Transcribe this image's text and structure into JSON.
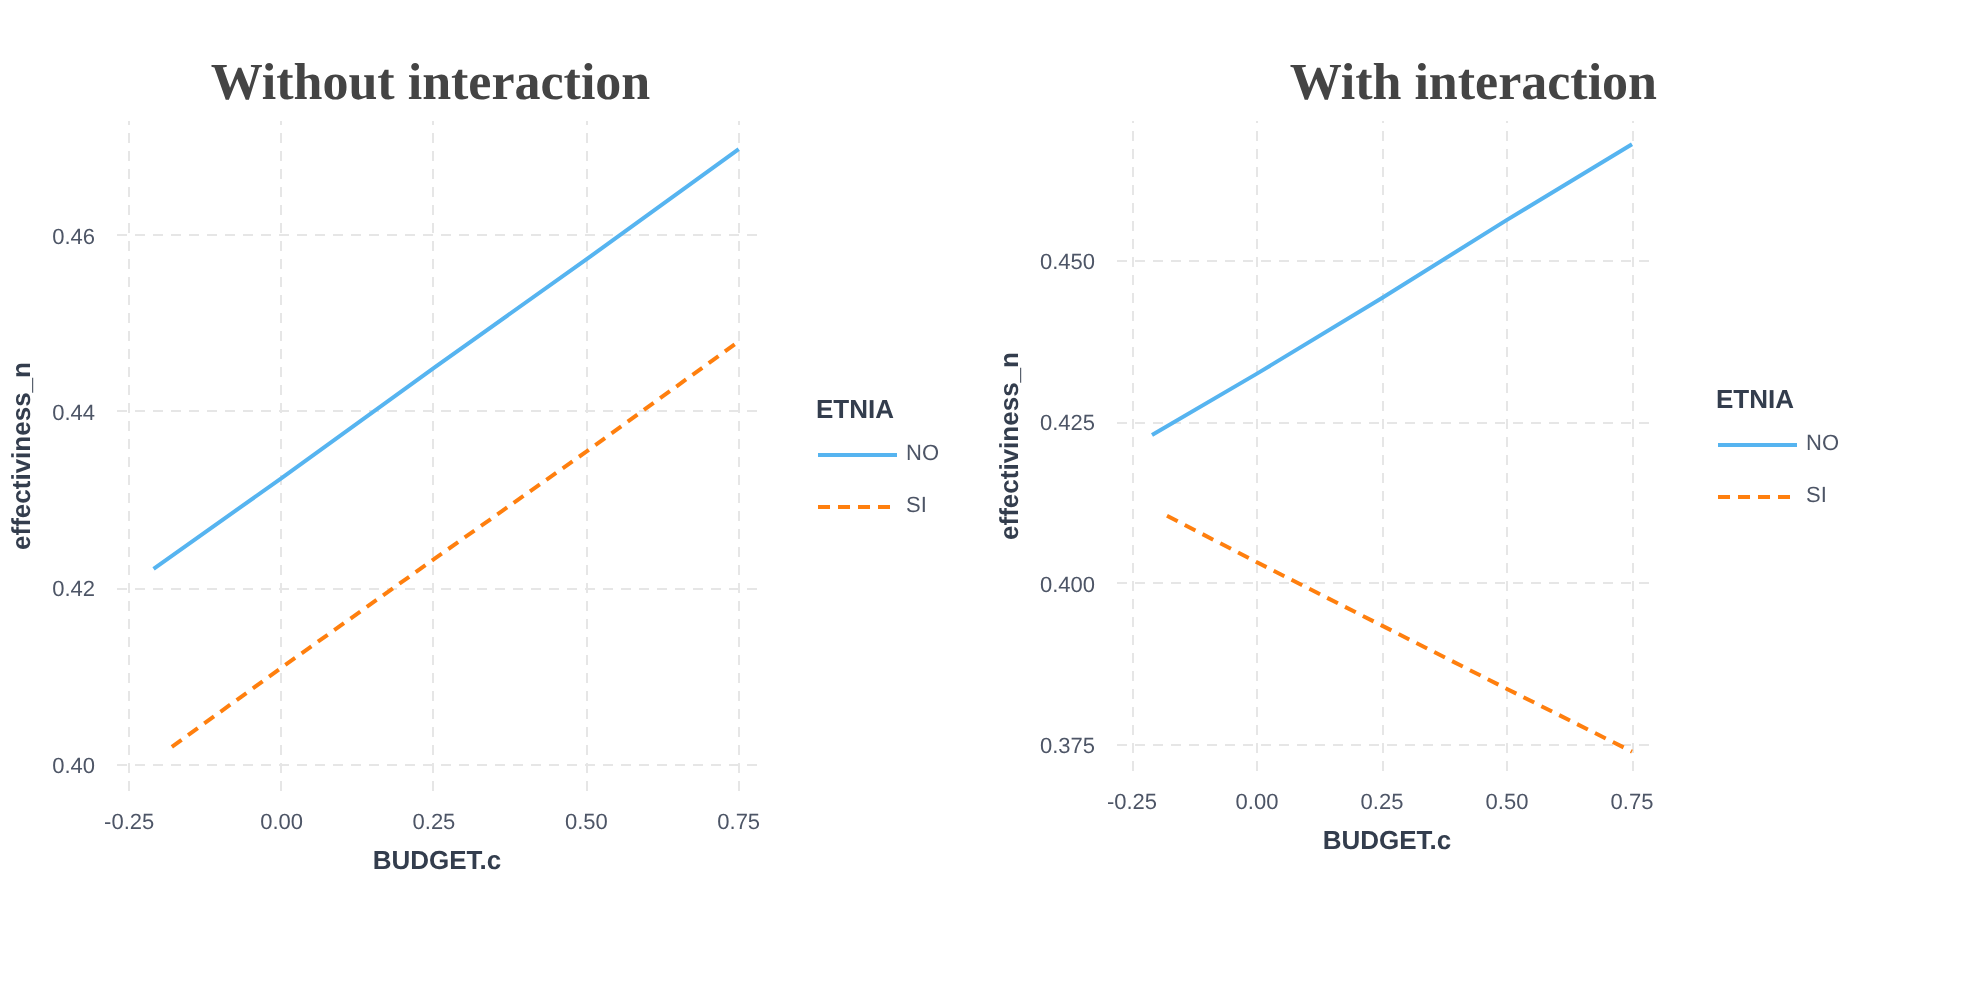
{
  "chart_data": [
    {
      "type": "line",
      "title": "Without  interaction",
      "xlabel": "BUDGET.c",
      "ylabel": "effectiviness_n",
      "legend_title": "ETNIA",
      "legend": "right",
      "grid": true,
      "xlim": [
        -0.27,
        0.78
      ],
      "ylim": [
        0.397,
        0.473
      ],
      "xticks": [
        {
          "value": -0.25,
          "label": "-0.25"
        },
        {
          "value": 0,
          "label": "0.00"
        },
        {
          "value": 0.25,
          "label": "0.25"
        },
        {
          "value": 0.5,
          "label": "0.50"
        },
        {
          "value": 0.75,
          "label": "0.75"
        }
      ],
      "yticks": [
        {
          "value": 0.4,
          "label": "0.40"
        },
        {
          "value": 0.42,
          "label": "0.42"
        },
        {
          "value": 0.44,
          "label": "0.44"
        },
        {
          "value": 0.46,
          "label": "0.46"
        }
      ],
      "series": [
        {
          "name": "NO",
          "color": "#56b4f0",
          "line_style": "solid",
          "x": [
            -0.21,
            0.0,
            0.25,
            0.5,
            0.75
          ],
          "values": [
            0.4222,
            0.4325,
            0.445,
            0.4573,
            0.4698
          ]
        },
        {
          "name": "SI",
          "color": "#ff7f0e",
          "line_style": "dashed",
          "x": [
            -0.18,
            0.0,
            0.25,
            0.5,
            0.75
          ],
          "values": [
            0.402,
            0.411,
            0.4233,
            0.4355,
            0.448
          ]
        }
      ]
    },
    {
      "type": "line",
      "title": "With interaction",
      "xlabel": "BUDGET.c",
      "ylabel": "effectiviness_n",
      "legend_title": "ETNIA",
      "legend": "right",
      "grid": true,
      "xlim": [
        -0.28,
        0.8
      ],
      "ylim": [
        0.371,
        0.4716
      ],
      "xticks": [
        {
          "value": -0.25,
          "label": "-0.25"
        },
        {
          "value": 0,
          "label": "0.00"
        },
        {
          "value": 0.25,
          "label": "0.25"
        },
        {
          "value": 0.5,
          "label": "0.50"
        },
        {
          "value": 0.75,
          "label": "0.75"
        }
      ],
      "yticks": [
        {
          "value": 0.375,
          "label": "0.375"
        },
        {
          "value": 0.4,
          "label": "0.400"
        },
        {
          "value": 0.425,
          "label": "0.425"
        },
        {
          "value": 0.45,
          "label": "0.450"
        }
      ],
      "series": [
        {
          "name": "NO",
          "color": "#56b4f0",
          "line_style": "solid",
          "x": [
            -0.21,
            0.0,
            0.25,
            0.5,
            0.75
          ],
          "values": [
            0.423,
            0.4325,
            0.4442,
            0.4563,
            0.468
          ]
        },
        {
          "name": "SI",
          "color": "#ff7f0e",
          "line_style": "dashed",
          "x": [
            -0.18,
            0.0,
            0.25,
            0.5,
            0.75
          ],
          "values": [
            0.4105,
            0.4033,
            0.3935,
            0.3837,
            0.374
          ]
        }
      ]
    }
  ]
}
